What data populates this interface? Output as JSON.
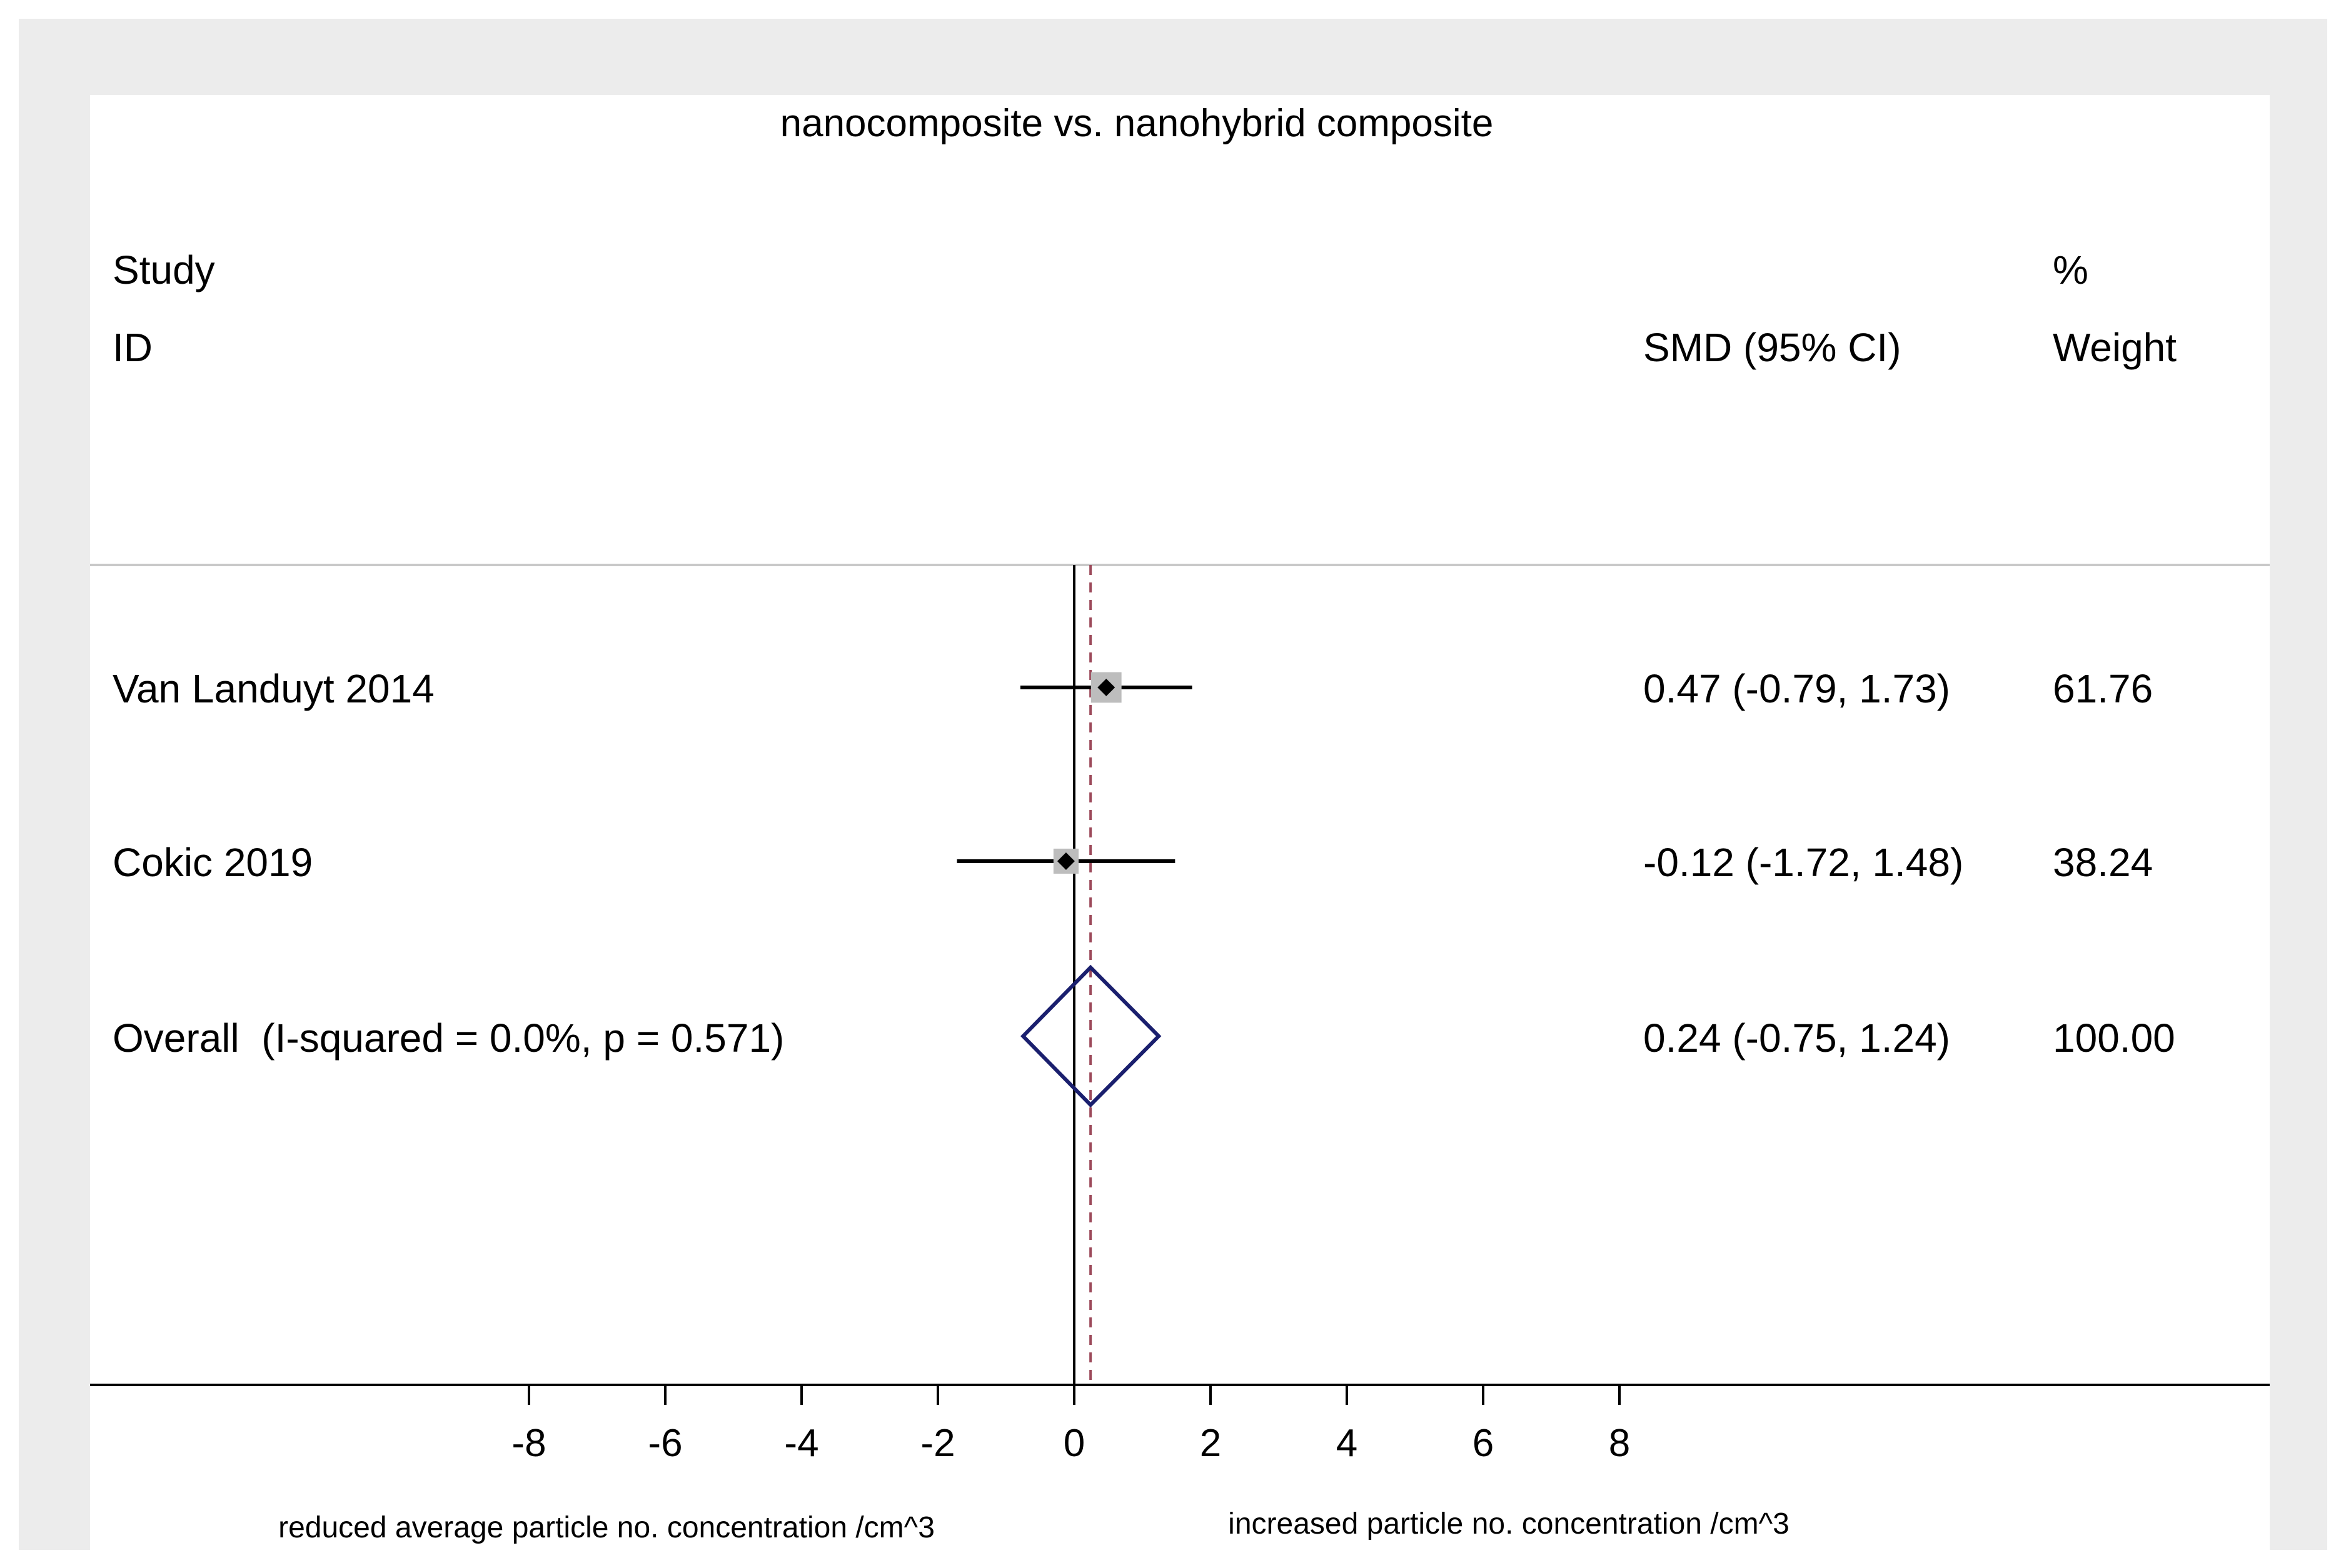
{
  "chart_data": {
    "type": "forest",
    "title": "nanocomposite vs. nanohybrid composite",
    "header": {
      "study": "Study",
      "id": "ID",
      "effect": "SMD (95% CI)",
      "pct": "%",
      "weight": "Weight"
    },
    "studies": [
      {
        "label": "Van Landuyt 2014",
        "est": 0.47,
        "lo": -0.79,
        "hi": 1.73,
        "ci_text": "0.47 (-0.79, 1.73)",
        "weight_text": "61.76",
        "weight": 61.76
      },
      {
        "label": "Cokic 2019",
        "est": -0.12,
        "lo": -1.72,
        "hi": 1.48,
        "ci_text": "-0.12 (-1.72, 1.48)",
        "weight_text": "38.24",
        "weight": 38.24
      }
    ],
    "overall": {
      "label": "Overall  (I-squared = 0.0%, p = 0.571)",
      "est": 0.24,
      "lo": -0.75,
      "hi": 1.24,
      "ci_text": "0.24 (-0.75, 1.24)",
      "weight_text": "100.00"
    },
    "x_ticks": [
      -8,
      -6,
      -4,
      -2,
      0,
      2,
      4,
      6,
      8
    ],
    "x_tick_labels": [
      "-8",
      "-6",
      "-4",
      "-2",
      "0",
      "2",
      "4",
      "6",
      "8"
    ],
    "xlim": [
      -8,
      8
    ],
    "left_label": "reduced average particle no. concentration /cm^3",
    "right_label": "increased particle no. concentration /cm^3",
    "colors": {
      "outer_bg": "#ececec",
      "plot_bg": "#ffffff",
      "ci_line": "#000000",
      "box": "#bdbdbd",
      "diamond": "#1a1f6e",
      "overall_line": "#9c4a5a"
    }
  }
}
